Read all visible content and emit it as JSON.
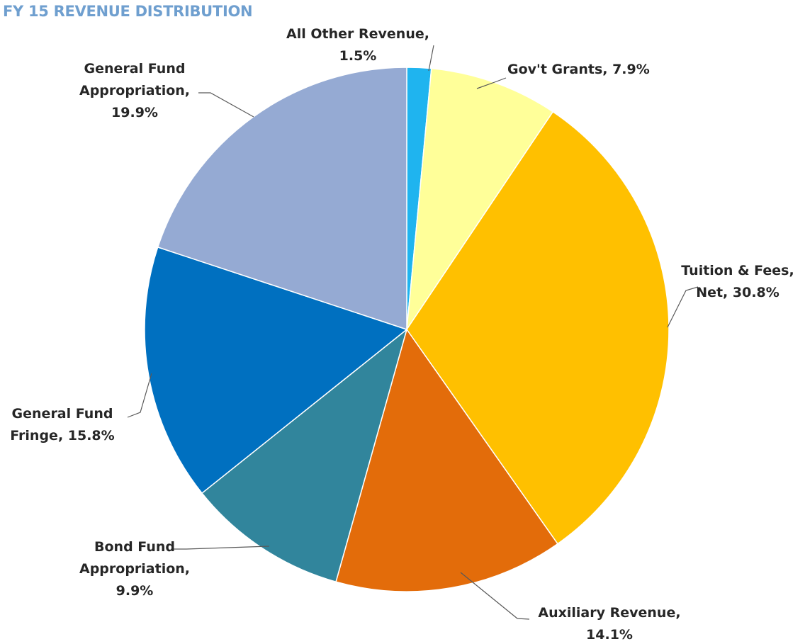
{
  "chart_data": {
    "type": "pie",
    "title": "FY 15 REVENUE DISTRIBUTION",
    "categories": [
      "All Other Revenue",
      "Gov't Grants",
      "Tuition & Fees, Net",
      "Auxiliary Revenue",
      "Bond Fund Appropriation",
      "General Fund Fringe",
      "General Fund Appropriation"
    ],
    "values": [
      1.5,
      7.9,
      30.8,
      14.1,
      9.9,
      15.8,
      19.9
    ],
    "value_suffix": "%",
    "label_text": [
      [
        "All Other Revenue,",
        "1.5%"
      ],
      [
        "Gov't Grants,  7.9%"
      ],
      [
        "Tuition & Fees,",
        "Net, 30.8%"
      ],
      [
        "Auxiliary Revenue,",
        "14.1%"
      ],
      [
        "Bond Fund",
        "Appropriation,",
        "9.9%"
      ],
      [
        "General Fund",
        "Fringe, 15.8%"
      ],
      [
        "General Fund",
        "Appropriation,",
        "19.9%"
      ]
    ],
    "colors": [
      "#1fb4ef",
      "#ffff99",
      "#ffc000",
      "#e36c0a",
      "#31859c",
      "#0070c0",
      "#95aad3"
    ],
    "start_angle": "12 o'clock",
    "direction": "clockwise",
    "legend": "none",
    "data_labels": "outside with leader lines"
  }
}
